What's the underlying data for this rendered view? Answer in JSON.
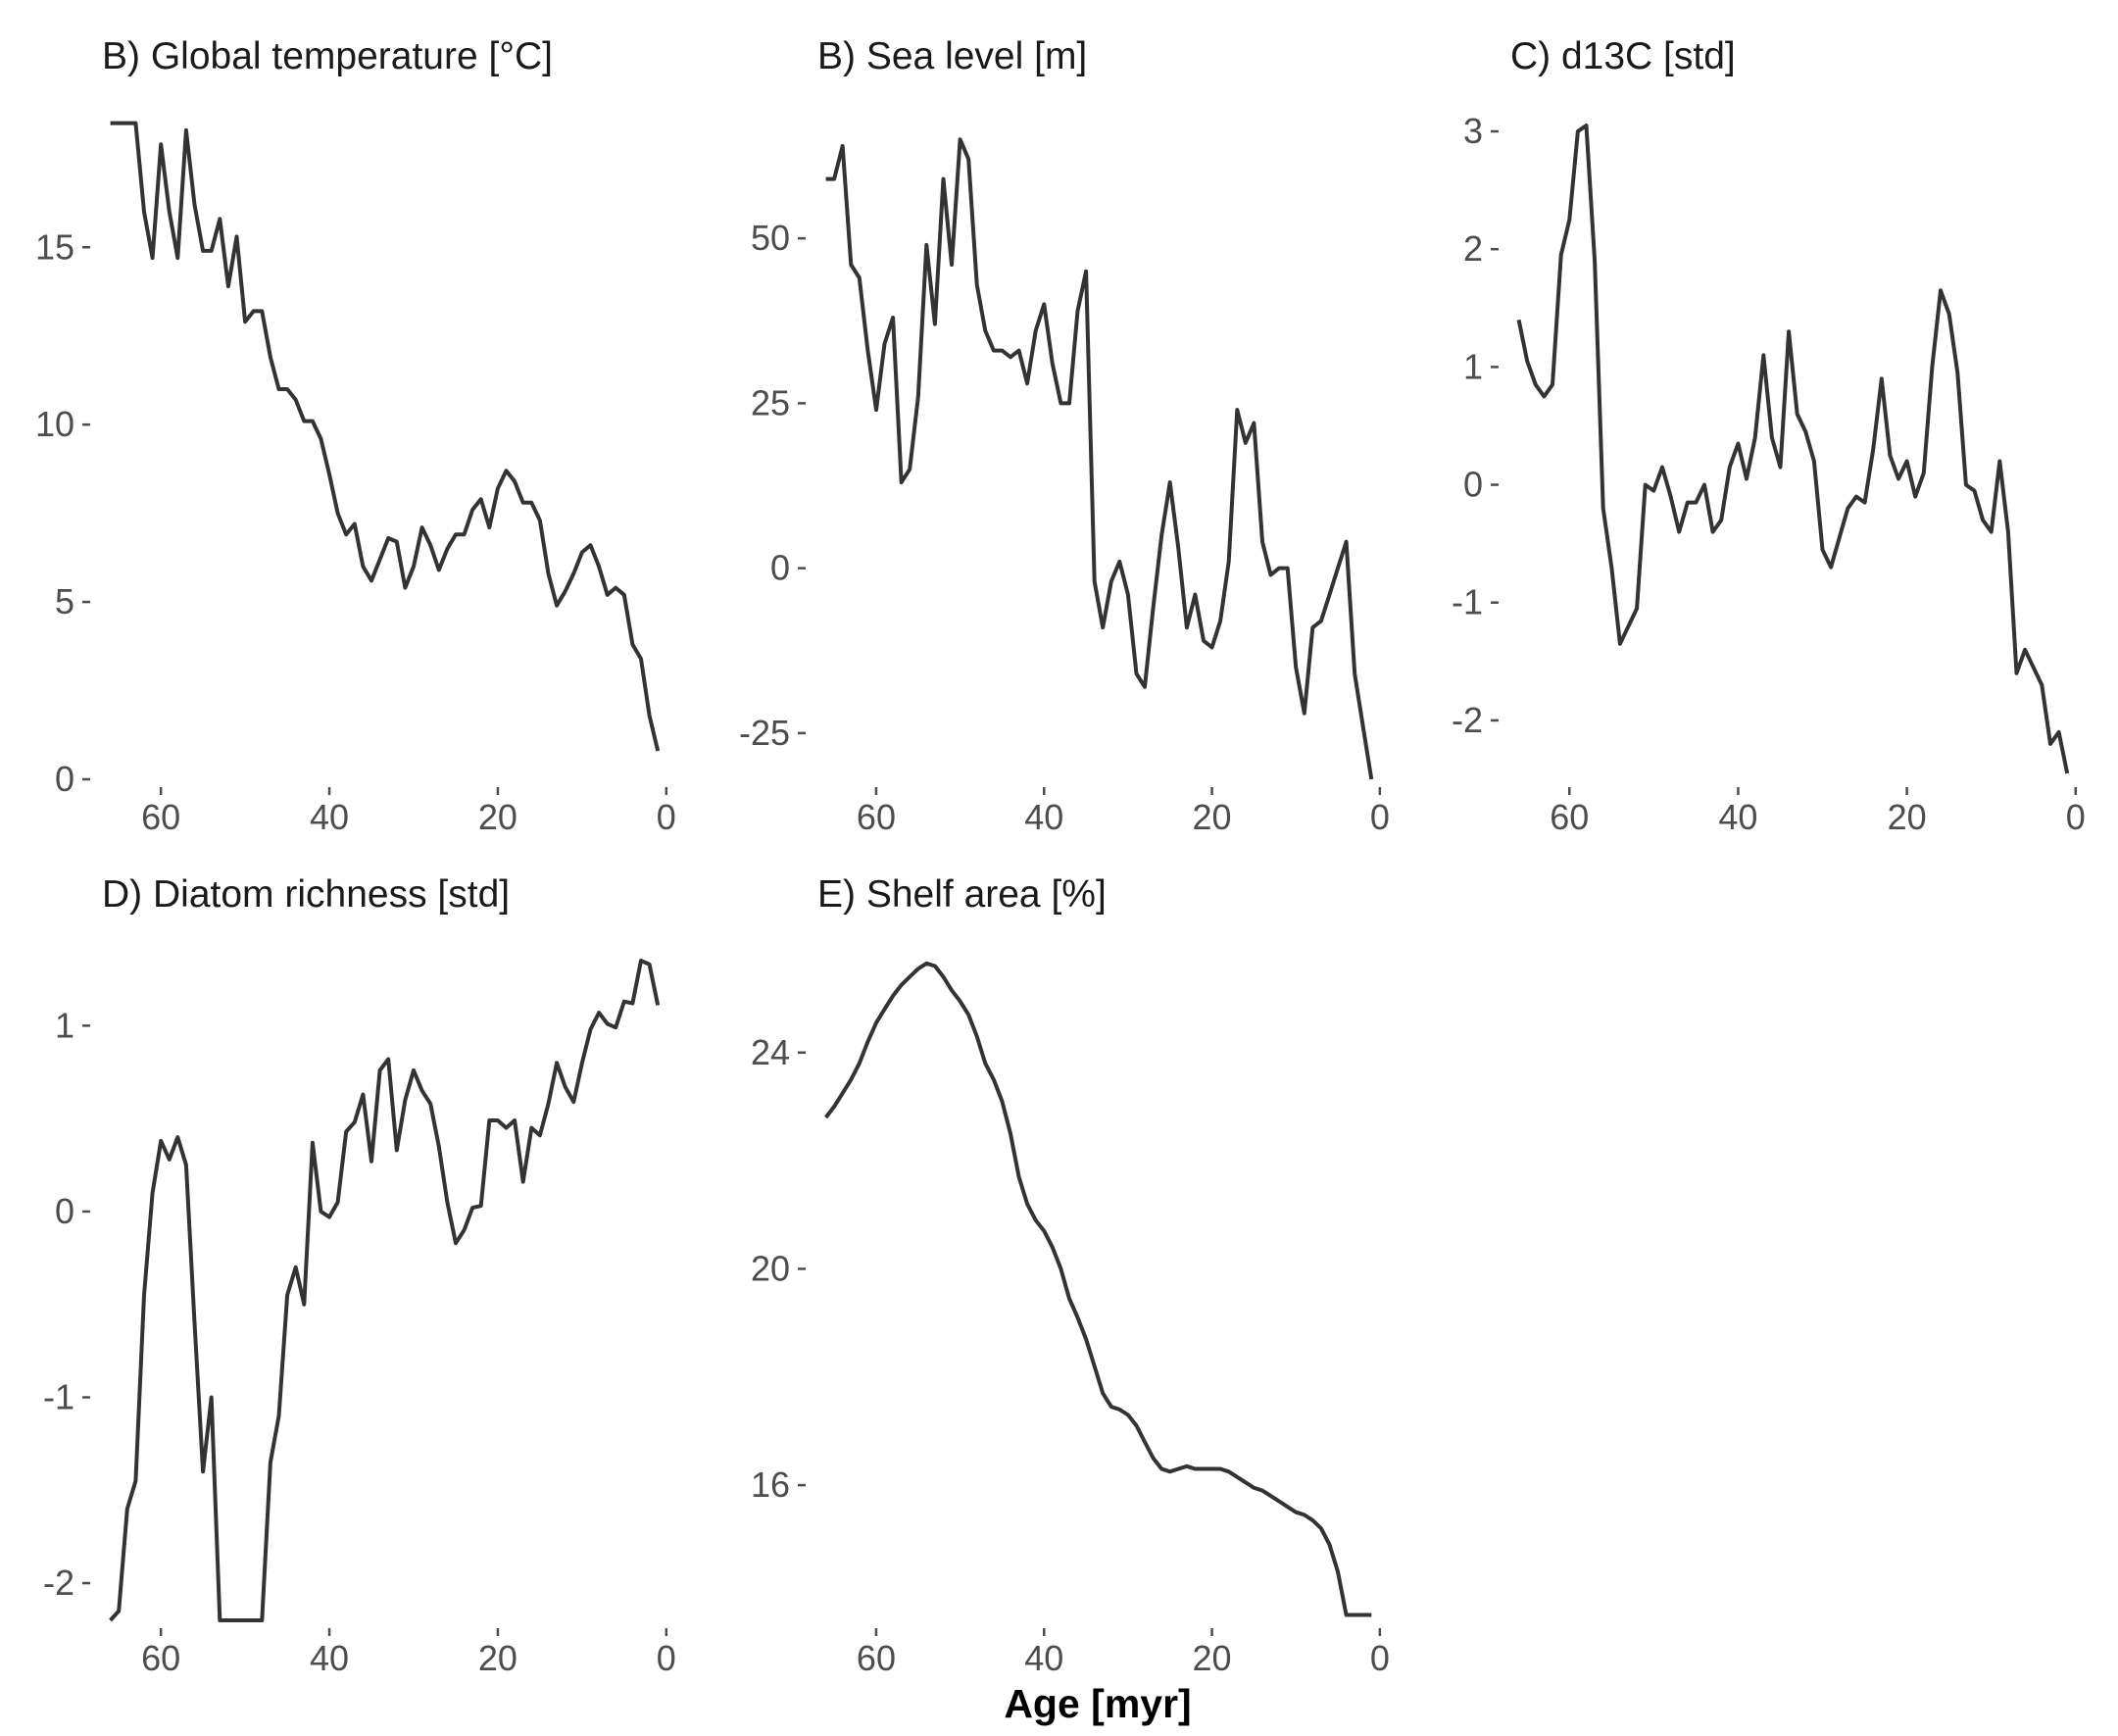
{
  "figure": {
    "xlabel": "Age [myr]"
  },
  "chart_data": [
    {
      "type": "line",
      "title": "B) Global temperature [°C]",
      "xlim": [
        67,
        -2
      ],
      "ylim": [
        0,
        18.6
      ],
      "xticks": [
        60,
        40,
        20,
        0
      ],
      "yticks": [
        0,
        5,
        10,
        15
      ],
      "ytick_labels": [
        "0",
        "5",
        "10",
        "15"
      ],
      "series": [
        {
          "x": [
            66,
            65,
            64,
            63,
            62,
            61,
            60,
            59,
            58,
            57,
            56,
            55,
            54,
            53,
            52,
            51,
            50,
            49,
            48,
            47,
            46,
            45,
            44,
            43,
            42,
            41,
            40,
            39,
            38,
            37,
            36,
            35,
            34,
            33,
            32,
            31,
            30,
            29,
            28,
            27,
            26,
            25,
            24,
            23,
            22,
            21,
            20,
            19,
            18,
            17,
            16,
            15,
            14,
            13,
            12,
            11,
            10,
            9,
            8,
            7,
            6,
            5,
            4,
            3,
            2,
            1
          ],
          "y": [
            18.5,
            18.5,
            18.5,
            18.5,
            16.0,
            14.7,
            17.9,
            16.0,
            14.7,
            18.3,
            16.2,
            14.9,
            14.9,
            15.8,
            13.9,
            15.3,
            12.9,
            13.2,
            13.2,
            11.9,
            11.0,
            11.0,
            10.7,
            10.1,
            10.1,
            9.6,
            8.6,
            7.5,
            6.9,
            7.2,
            6.0,
            5.6,
            6.2,
            6.8,
            6.7,
            5.4,
            6.0,
            7.1,
            6.6,
            5.9,
            6.5,
            6.9,
            6.9,
            7.6,
            7.9,
            7.1,
            8.2,
            8.7,
            8.4,
            7.8,
            7.8,
            7.3,
            5.8,
            4.9,
            5.3,
            5.8,
            6.4,
            6.6,
            6.0,
            5.2,
            5.4,
            5.2,
            3.8,
            3.4,
            1.8,
            0.8
          ]
        }
      ]
    },
    {
      "type": "line",
      "title": "B) Sea level [m]",
      "xlim": [
        67,
        -2
      ],
      "ylim": [
        -32,
        68
      ],
      "xticks": [
        60,
        40,
        20,
        0
      ],
      "yticks": [
        -25,
        0,
        25,
        50
      ],
      "ytick_labels": [
        "-25",
        "0",
        "25",
        "50"
      ],
      "series": [
        {
          "x": [
            66,
            65,
            64,
            63,
            62,
            61,
            60,
            59,
            58,
            57,
            56,
            55,
            54,
            53,
            52,
            51,
            50,
            49,
            48,
            47,
            46,
            45,
            44,
            43,
            42,
            41,
            40,
            39,
            38,
            37,
            36,
            35,
            34,
            33,
            32,
            31,
            30,
            29,
            28,
            27,
            26,
            25,
            24,
            23,
            22,
            21,
            20,
            19,
            18,
            17,
            16,
            15,
            14,
            13,
            12,
            11,
            10,
            9,
            8,
            7,
            6,
            5,
            4,
            3,
            2,
            1
          ],
          "y": [
            59,
            59,
            64,
            46,
            44,
            33,
            24,
            34,
            38,
            13,
            15,
            26,
            49,
            37,
            59,
            46,
            65,
            62,
            43,
            36,
            33,
            33,
            32,
            33,
            28,
            36,
            40,
            31,
            25,
            25,
            39,
            45,
            -2,
            -9,
            -2,
            1,
            -4,
            -16,
            -18,
            -6,
            5,
            13,
            3,
            -9,
            -4,
            -11,
            -12,
            -8,
            1,
            24,
            19,
            22,
            4,
            -1,
            0,
            0,
            -15,
            -22,
            -9,
            -8,
            -4,
            0,
            4,
            -16,
            -24,
            -32
          ]
        }
      ]
    },
    {
      "type": "line",
      "title": "C) d13C [std]",
      "xlim": [
        67,
        -2
      ],
      "ylim": [
        -2.5,
        3.1
      ],
      "xticks": [
        60,
        40,
        20,
        0
      ],
      "yticks": [
        -2,
        -1,
        0,
        1,
        2,
        3
      ],
      "ytick_labels": [
        "-2",
        "-1",
        "0",
        "1",
        "2",
        "3"
      ],
      "series": [
        {
          "x": [
            66,
            65,
            64,
            63,
            62,
            61,
            60,
            59,
            58,
            57,
            56,
            55,
            54,
            53,
            52,
            51,
            50,
            49,
            48,
            47,
            46,
            45,
            44,
            43,
            42,
            41,
            40,
            39,
            38,
            37,
            36,
            35,
            34,
            33,
            32,
            31,
            30,
            29,
            28,
            27,
            26,
            25,
            24,
            23,
            22,
            21,
            20,
            19,
            18,
            17,
            16,
            15,
            14,
            13,
            12,
            11,
            10,
            9,
            8,
            7,
            6,
            5,
            4,
            3,
            2,
            1
          ],
          "y": [
            1.4,
            1.05,
            0.85,
            0.75,
            0.85,
            1.95,
            2.25,
            3.0,
            3.05,
            1.9,
            -0.2,
            -0.7,
            -1.35,
            -1.2,
            -1.05,
            0.0,
            -0.05,
            0.15,
            -0.1,
            -0.4,
            -0.15,
            -0.15,
            0.0,
            -0.4,
            -0.3,
            0.15,
            0.35,
            0.05,
            0.4,
            1.1,
            0.4,
            0.15,
            1.3,
            0.6,
            0.45,
            0.2,
            -0.55,
            -0.7,
            -0.45,
            -0.2,
            -0.1,
            -0.15,
            0.3,
            0.9,
            0.25,
            0.05,
            0.2,
            -0.1,
            0.1,
            1.0,
            1.65,
            1.45,
            0.95,
            0.0,
            -0.05,
            -0.3,
            -0.4,
            0.2,
            -0.4,
            -1.6,
            -1.4,
            -1.55,
            -1.7,
            -2.2,
            -2.1,
            -2.45
          ]
        }
      ]
    },
    {
      "type": "line",
      "title": "D) Diatom richness [std]",
      "xlim": [
        67,
        -2
      ],
      "ylim": [
        -2.2,
        1.35
      ],
      "xticks": [
        60,
        40,
        20,
        0
      ],
      "yticks": [
        -2,
        -1,
        0,
        1
      ],
      "ytick_labels": [
        "-2",
        "-1",
        "0",
        "1"
      ],
      "series": [
        {
          "x": [
            66,
            65,
            64,
            63,
            62,
            61,
            60,
            59,
            58,
            57,
            56,
            55,
            54,
            53,
            52,
            51,
            50,
            49,
            48,
            47,
            46,
            45,
            44,
            43,
            42,
            41,
            40,
            39,
            38,
            37,
            36,
            35,
            34,
            33,
            32,
            31,
            30,
            29,
            28,
            27,
            26,
            25,
            24,
            23,
            22,
            21,
            20,
            19,
            18,
            17,
            16,
            15,
            14,
            13,
            12,
            11,
            10,
            9,
            8,
            7,
            6,
            5,
            4,
            3,
            2,
            1
          ],
          "y": [
            -2.2,
            -2.15,
            -1.6,
            -1.45,
            -0.45,
            0.1,
            0.38,
            0.28,
            0.4,
            0.25,
            -0.6,
            -1.4,
            -1.0,
            -2.2,
            -2.2,
            -2.2,
            -2.2,
            -2.2,
            -2.2,
            -1.35,
            -1.1,
            -0.45,
            -0.3,
            -0.5,
            0.37,
            0.0,
            -0.03,
            0.05,
            0.43,
            0.48,
            0.63,
            0.27,
            0.76,
            0.82,
            0.33,
            0.6,
            0.76,
            0.65,
            0.58,
            0.35,
            0.05,
            -0.17,
            -0.1,
            0.02,
            0.03,
            0.49,
            0.49,
            0.45,
            0.49,
            0.16,
            0.45,
            0.41,
            0.58,
            0.8,
            0.67,
            0.59,
            0.8,
            0.98,
            1.07,
            1.01,
            0.99,
            1.13,
            1.12,
            1.35,
            1.33,
            1.11
          ]
        }
      ]
    },
    {
      "type": "line",
      "title": "E) Shelf area [%]",
      "xlim": [
        67,
        -2
      ],
      "ylim": [
        13.5,
        25.7
      ],
      "xticks": [
        60,
        40,
        20,
        0
      ],
      "yticks": [
        16,
        20,
        24
      ],
      "ytick_labels": [
        "16",
        "20",
        "24"
      ],
      "series": [
        {
          "x": [
            66,
            65,
            64,
            63,
            62,
            61,
            60,
            59,
            58,
            57,
            56,
            55,
            54,
            53,
            52,
            51,
            50,
            49,
            48,
            47,
            46,
            45,
            44,
            43,
            42,
            41,
            40,
            39,
            38,
            37,
            36,
            35,
            34,
            33,
            32,
            31,
            30,
            29,
            28,
            27,
            26,
            25,
            24,
            23,
            22,
            21,
            20,
            19,
            18,
            17,
            16,
            15,
            14,
            13,
            12,
            11,
            10,
            9,
            8,
            7,
            6,
            5,
            4,
            3,
            2,
            1
          ],
          "y": [
            22.8,
            23.0,
            23.25,
            23.5,
            23.8,
            24.2,
            24.55,
            24.8,
            25.05,
            25.25,
            25.4,
            25.55,
            25.65,
            25.6,
            25.4,
            25.15,
            24.95,
            24.7,
            24.3,
            23.8,
            23.5,
            23.1,
            22.5,
            21.7,
            21.2,
            20.9,
            20.7,
            20.4,
            20.0,
            19.45,
            19.1,
            18.7,
            18.2,
            17.7,
            17.45,
            17.4,
            17.3,
            17.1,
            16.8,
            16.5,
            16.3,
            16.25,
            16.3,
            16.35,
            16.3,
            16.3,
            16.3,
            16.3,
            16.25,
            16.15,
            16.05,
            15.95,
            15.9,
            15.8,
            15.7,
            15.6,
            15.5,
            15.45,
            15.35,
            15.2,
            14.9,
            14.4,
            13.6,
            13.6,
            13.6,
            13.6
          ]
        }
      ]
    }
  ]
}
